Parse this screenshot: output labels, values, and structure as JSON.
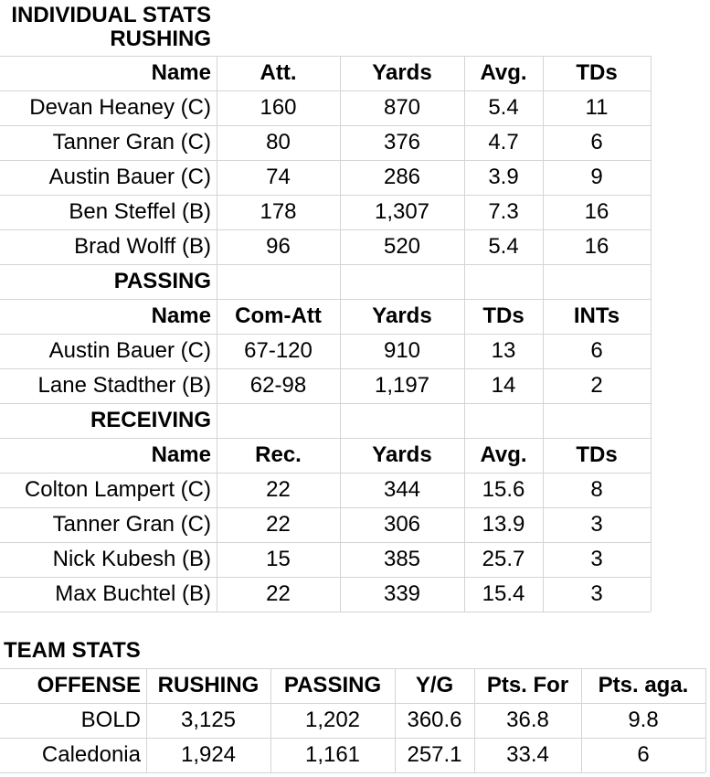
{
  "individual": {
    "title": "INDIVIDUAL STATS",
    "rushing": {
      "title": "RUSHING",
      "header": [
        "Name",
        "Att.",
        "Yards",
        "Avg.",
        "TDs"
      ],
      "rows": [
        [
          "Devan Heaney (C)",
          "160",
          "870",
          "5.4",
          "11"
        ],
        [
          "Tanner Gran (C)",
          "80",
          "376",
          "4.7",
          "6"
        ],
        [
          "Austin Bauer (C)",
          "74",
          "286",
          "3.9",
          "9"
        ],
        [
          "Ben Steffel (B)",
          "178",
          "1,307",
          "7.3",
          "16"
        ],
        [
          "Brad Wolff (B)",
          "96",
          "520",
          "5.4",
          "16"
        ]
      ]
    },
    "passing": {
      "title": "PASSING",
      "header": [
        "Name",
        "Com-Att",
        "Yards",
        "TDs",
        "INTs"
      ],
      "rows": [
        [
          "Austin Bauer (C)",
          "67-120",
          "910",
          "13",
          "6"
        ],
        [
          "Lane Stadther (B)",
          "62-98",
          "1,197",
          "14",
          "2"
        ]
      ]
    },
    "receiving": {
      "title": "RECEIVING",
      "header": [
        "Name",
        "Rec.",
        "Yards",
        "Avg.",
        "TDs"
      ],
      "rows": [
        [
          "Colton Lampert (C)",
          "22",
          "344",
          "15.6",
          "8"
        ],
        [
          "Tanner Gran (C)",
          "22",
          "306",
          "13.9",
          "3"
        ],
        [
          "Nick Kubesh (B)",
          "15",
          "385",
          "25.7",
          "3"
        ],
        [
          "Max Buchtel (B)",
          "22",
          "339",
          "15.4",
          "3"
        ]
      ]
    }
  },
  "team": {
    "title": "TEAM STATS",
    "header": [
      "OFFENSE",
      "RUSHING",
      "PASSING",
      "Y/G",
      "Pts. For",
      "Pts. aga."
    ],
    "rows": [
      [
        "BOLD",
        "3,125",
        "1,202",
        "360.6",
        "36.8",
        "9.8"
      ],
      [
        "Caledonia",
        "1,924",
        "1,161",
        "257.1",
        "33.4",
        "6"
      ]
    ]
  }
}
